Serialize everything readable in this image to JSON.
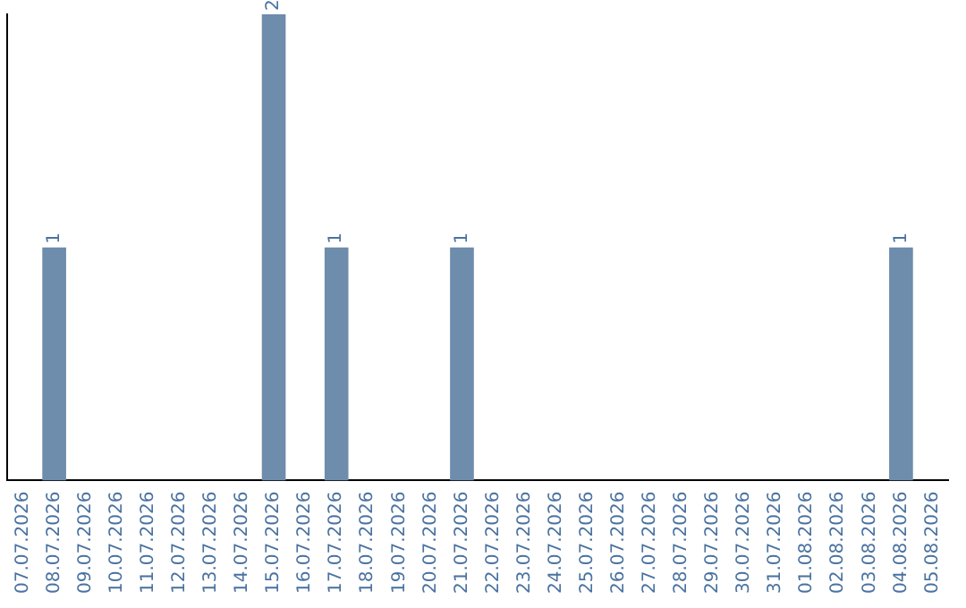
{
  "chart_data": {
    "type": "bar",
    "categories": [
      "07.07.2026",
      "08.07.2026",
      "09.07.2026",
      "10.07.2026",
      "11.07.2026",
      "12.07.2026",
      "13.07.2026",
      "14.07.2026",
      "15.07.2026",
      "16.07.2026",
      "17.07.2026",
      "18.07.2026",
      "19.07.2026",
      "20.07.2026",
      "21.07.2026",
      "22.07.2026",
      "23.07.2026",
      "24.07.2026",
      "25.07.2026",
      "26.07.2026",
      "27.07.2026",
      "28.07.2026",
      "29.07.2026",
      "30.07.2026",
      "31.07.2026",
      "01.08.2026",
      "02.08.2026",
      "03.08.2026",
      "04.08.2026",
      "05.08.2026"
    ],
    "values": [
      0,
      1,
      0,
      0,
      0,
      0,
      0,
      0,
      2,
      0,
      1,
      0,
      0,
      0,
      1,
      0,
      0,
      0,
      0,
      0,
      0,
      0,
      0,
      0,
      0,
      0,
      0,
      0,
      1,
      0
    ],
    "value_labels": [
      null,
      "1",
      null,
      null,
      null,
      null,
      null,
      null,
      "2",
      null,
      "1",
      null,
      null,
      null,
      "1",
      null,
      null,
      null,
      null,
      null,
      null,
      null,
      null,
      null,
      null,
      null,
      null,
      null,
      "1",
      null
    ],
    "color": "#6e8cab",
    "ylim": [
      0,
      2
    ],
    "tick_labels": "x",
    "grid": false,
    "legend": false
  }
}
